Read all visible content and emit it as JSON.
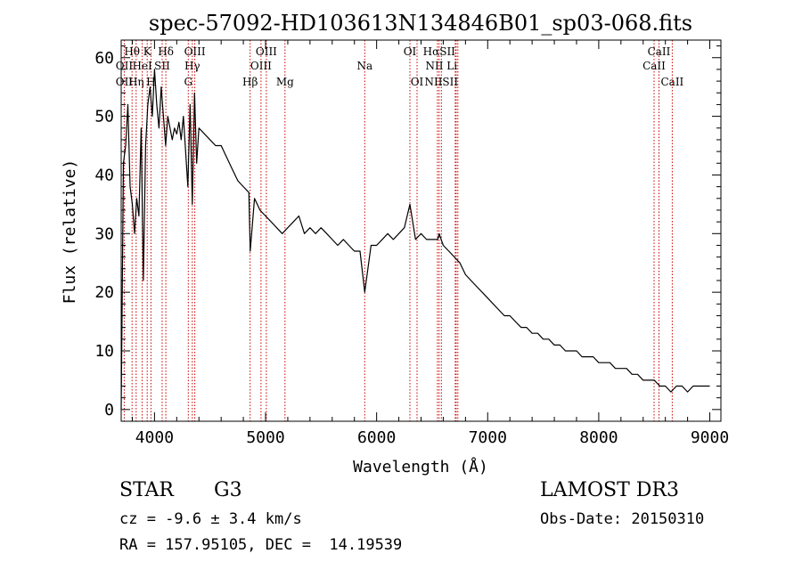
{
  "chart_data": {
    "type": "line",
    "title": "spec-57092-HD103613N134846B01_sp03-068.fits",
    "xlabel": "Wavelength (Å)",
    "ylabel": "Flux (relative)",
    "xlim": [
      3700,
      9100
    ],
    "ylim": [
      -2,
      63
    ],
    "xticks": [
      4000,
      5000,
      6000,
      7000,
      8000,
      9000
    ],
    "yticks": [
      0,
      10,
      20,
      30,
      40,
      50,
      60
    ],
    "grid": false,
    "line_color": "#000000",
    "marker_color": "#cc0000",
    "series": [
      {
        "x": [
          3700,
          3720,
          3740,
          3760,
          3780,
          3800,
          3820,
          3840,
          3860,
          3880,
          3900,
          3920,
          3940,
          3960,
          3980,
          4000,
          4020,
          4040,
          4060,
          4080,
          4100,
          4120,
          4140,
          4160,
          4180,
          4200,
          4220,
          4240,
          4260,
          4280,
          4300,
          4320,
          4340,
          4360,
          4380,
          4400,
          4450,
          4500,
          4550,
          4600,
          4650,
          4700,
          4750,
          4800,
          4850,
          4862,
          4900,
          4950,
          5000,
          5050,
          5100,
          5150,
          5200,
          5250,
          5300,
          5350,
          5400,
          5450,
          5500,
          5550,
          5600,
          5650,
          5700,
          5750,
          5800,
          5850,
          5893,
          5950,
          6000,
          6050,
          6100,
          6150,
          6200,
          6250,
          6300,
          6350,
          6400,
          6450,
          6500,
          6550,
          6563,
          6600,
          6650,
          6700,
          6750,
          6800,
          6850,
          6900,
          6950,
          7000,
          7050,
          7100,
          7150,
          7200,
          7250,
          7300,
          7350,
          7400,
          7450,
          7500,
          7550,
          7600,
          7650,
          7700,
          7750,
          7800,
          7850,
          7900,
          7950,
          8000,
          8050,
          8100,
          8150,
          8200,
          8250,
          8300,
          8350,
          8400,
          8450,
          8500,
          8550,
          8600,
          8650,
          8700,
          8750,
          8800,
          8850,
          8900,
          8950,
          9000
        ],
        "y": [
          0,
          42,
          45,
          52,
          38,
          35,
          30,
          36,
          33,
          48,
          22,
          45,
          52,
          55,
          50,
          58,
          52,
          48,
          55,
          50,
          45,
          50,
          48,
          46,
          48,
          47,
          49,
          46,
          50,
          44,
          38,
          52,
          35,
          54,
          42,
          48,
          47,
          46,
          45,
          45,
          43,
          41,
          39,
          38,
          37,
          27,
          36,
          34,
          33,
          32,
          31,
          30,
          31,
          32,
          33,
          30,
          31,
          30,
          31,
          30,
          29,
          28,
          29,
          28,
          27,
          27,
          20,
          28,
          28,
          29,
          30,
          29,
          30,
          31,
          35,
          29,
          30,
          29,
          29,
          29,
          30,
          28,
          27,
          26,
          25,
          23,
          22,
          21,
          20,
          19,
          18,
          17,
          16,
          16,
          15,
          14,
          14,
          13,
          13,
          12,
          12,
          11,
          11,
          10,
          10,
          10,
          9,
          9,
          9,
          8,
          8,
          8,
          7,
          7,
          7,
          6,
          6,
          5,
          5,
          5,
          4,
          4,
          3,
          4,
          4,
          3,
          4,
          4,
          4,
          4
        ]
      }
    ],
    "lines": [
      {
        "label": "OII",
        "x": 3727
      },
      {
        "label": "Hθ",
        "x": 3798
      },
      {
        "label": "Hη",
        "x": 3835
      },
      {
        "label": "K",
        "x": 3934
      },
      {
        "label": "H",
        "x": 3968
      },
      {
        "label": "HeI",
        "x": 3889
      },
      {
        "label": "SII",
        "x": 4069
      },
      {
        "label": "Hδ",
        "x": 4102
      },
      {
        "label": "G",
        "x": 4304
      },
      {
        "label": "Hγ",
        "x": 4340
      },
      {
        "label": "OIII",
        "x": 4363
      },
      {
        "label": "Hβ",
        "x": 4861
      },
      {
        "label": "OIII",
        "x": 4959
      },
      {
        "label": "OIII",
        "x": 5007
      },
      {
        "label": "Mg",
        "x": 5175
      },
      {
        "label": "Na",
        "x": 5893
      },
      {
        "label": "OI",
        "x": 6300
      },
      {
        "label": "OI",
        "x": 6364
      },
      {
        "label": "NII",
        "x": 6548
      },
      {
        "label": "Hα",
        "x": 6563
      },
      {
        "label": "NII",
        "x": 6583
      },
      {
        "label": "Li",
        "x": 6708
      },
      {
        "label": "SII",
        "x": 6716
      },
      {
        "label": "SII",
        "x": 6731
      },
      {
        "label": "CaII",
        "x": 8498
      },
      {
        "label": "CaII",
        "x": 8542
      },
      {
        "label": "CaII",
        "x": 8662
      }
    ],
    "line_labels": [
      {
        "text": "Hθ",
        "x": 3798,
        "row": 0
      },
      {
        "text": "K",
        "x": 3934,
        "row": 0
      },
      {
        "text": "Hδ",
        "x": 4102,
        "row": 0
      },
      {
        "text": "OII",
        "x": 3727,
        "row": 1
      },
      {
        "text": "HeI",
        "x": 3889,
        "row": 1
      },
      {
        "text": "SII",
        "x": 4069,
        "row": 1
      },
      {
        "text": "OII",
        "x": 3727,
        "row": 2
      },
      {
        "text": "Hη",
        "x": 3835,
        "row": 2
      },
      {
        "text": "H",
        "x": 3968,
        "row": 2
      },
      {
        "text": "OIII",
        "x": 4363,
        "row": 0
      },
      {
        "text": "Hγ",
        "x": 4340,
        "row": 1
      },
      {
        "text": "G",
        "x": 4304,
        "row": 2
      },
      {
        "text": "OIII",
        "x": 5007,
        "row": 0
      },
      {
        "text": "OIII",
        "x": 4959,
        "row": 1
      },
      {
        "text": "Hβ",
        "x": 4861,
        "row": 2
      },
      {
        "text": "Mg",
        "x": 5175,
        "row": 2
      },
      {
        "text": "Na",
        "x": 5893,
        "row": 1
      },
      {
        "text": "OI",
        "x": 6300,
        "row": 0
      },
      {
        "text": "OI",
        "x": 6364,
        "row": 2
      },
      {
        "text": "HαSII",
        "x": 6563,
        "row": 0
      },
      {
        "text": "NII Li",
        "x": 6583,
        "row": 1
      },
      {
        "text": "NIISII",
        "x": 6583,
        "row": 2
      },
      {
        "text": "CaII",
        "x": 8542,
        "row": 0
      },
      {
        "text": "CaII",
        "x": 8498,
        "row": 1
      },
      {
        "text": "CaII",
        "x": 8662,
        "row": 2
      }
    ]
  },
  "info": {
    "object_class": "STAR",
    "subclass": "G3",
    "survey": "LAMOST DR3",
    "velocity": "cz = -9.6 ± 3.4 km/s",
    "obs_date": "Obs-Date: 20150310",
    "coords": "RA = 157.95105, DEC =  14.19539"
  }
}
